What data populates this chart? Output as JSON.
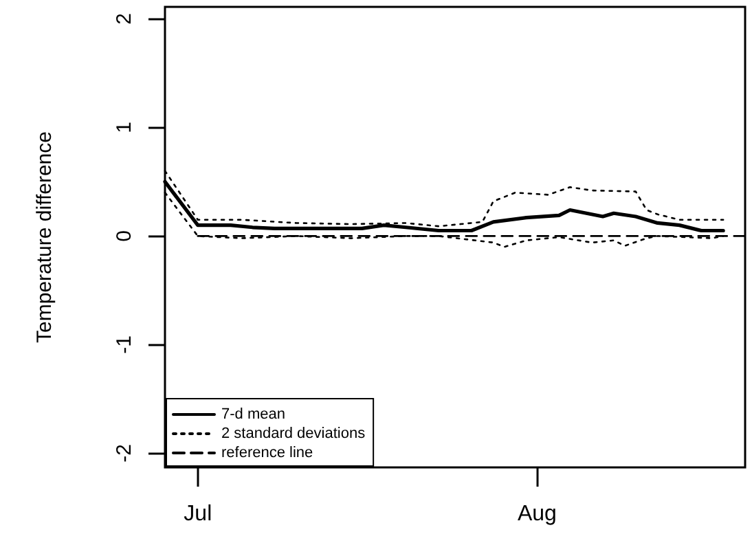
{
  "chart_data": {
    "type": "line",
    "ylabel": "Temperature difference",
    "xlim": [
      "--06-28",
      "--08-20"
    ],
    "xticks": [
      {
        "value": "--07-01",
        "label": "Jul"
      },
      {
        "value": "--08-01",
        "label": "Aug"
      }
    ],
    "ylim": [
      -2.13,
      2.11
    ],
    "yticks": [
      -2,
      -1,
      0,
      1,
      2
    ],
    "grid": false,
    "legend": "bottom left",
    "marker": "none",
    "series": [
      {
        "name": "7-d mean",
        "color": "#000000",
        "line_style": "solid",
        "x": [
          "--06-28",
          "--07-01",
          "--07-04",
          "--07-06",
          "--07-08",
          "--07-12",
          "--07-16",
          "--07-18",
          "--07-20",
          "--07-23",
          "--07-26",
          "--07-28",
          "--07-31",
          "--08-03",
          "--08-04",
          "--08-07",
          "--08-08",
          "--08-10",
          "--08-12",
          "--08-14",
          "--08-16",
          "--08-18"
        ],
        "values": [
          0.5,
          0.1,
          0.1,
          0.08,
          0.07,
          0.07,
          0.07,
          0.1,
          0.08,
          0.05,
          0.05,
          0.13,
          0.17,
          0.19,
          0.24,
          0.18,
          0.21,
          0.18,
          0.12,
          0.1,
          0.05,
          0.05
        ]
      },
      {
        "name": "2 standard deviations",
        "color": "#000000",
        "line_style": "dotted",
        "x": [
          "--06-28",
          "--07-01",
          "--07-05",
          "--07-10",
          "--07-15",
          "--07-20",
          "--07-23",
          "--07-27",
          "--07-28",
          "--07-30",
          "--08-02",
          "--08-04",
          "--08-06",
          "--08-10",
          "--08-11",
          "--08-12",
          "--08-14",
          "--08-18"
        ],
        "values": [
          0.6,
          0.15,
          0.15,
          0.12,
          0.11,
          0.12,
          0.09,
          0.13,
          0.32,
          0.4,
          0.38,
          0.45,
          0.42,
          0.41,
          0.24,
          0.2,
          0.15,
          0.15
        ]
      },
      {
        "color": "#000000",
        "line_style": "dotted",
        "x": [
          "--06-28",
          "--07-01",
          "--07-05",
          "--07-10",
          "--07-15",
          "--07-20",
          "--07-23",
          "--07-28",
          "--07-29",
          "--07-31",
          "--08-03",
          "--08-06",
          "--08-08",
          "--08-09",
          "--08-11",
          "--08-12",
          "--08-17",
          "--08-18"
        ],
        "values": [
          0.4,
          0.0,
          -0.02,
          0.0,
          -0.02,
          0.0,
          0.0,
          -0.06,
          -0.1,
          -0.04,
          -0.01,
          -0.06,
          -0.04,
          -0.09,
          -0.02,
          0.0,
          -0.02,
          0.0
        ]
      },
      {
        "name": "reference line",
        "color": "#000000",
        "line_style": "dashed",
        "x": [
          "--07-01",
          "--08-20"
        ],
        "values": [
          0,
          0
        ]
      }
    ]
  }
}
